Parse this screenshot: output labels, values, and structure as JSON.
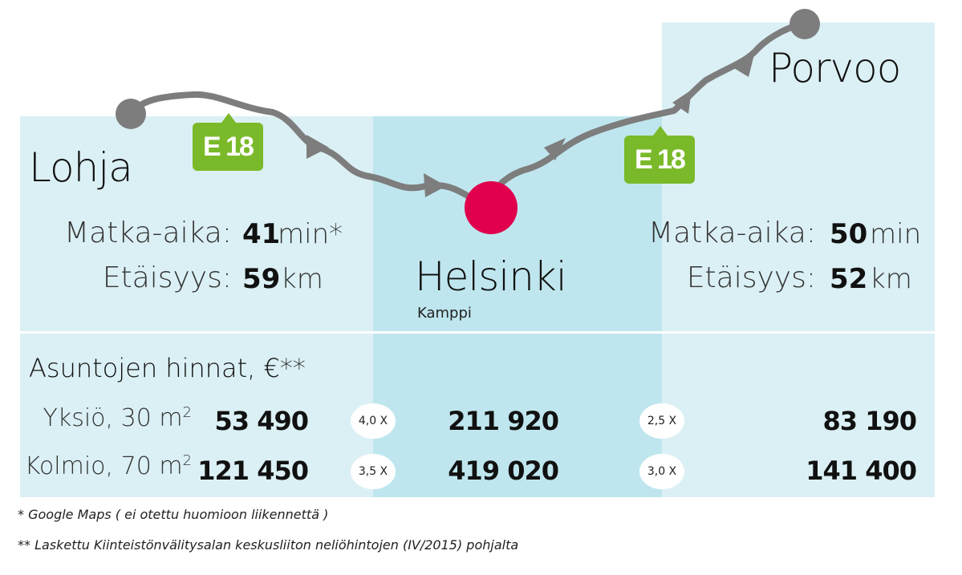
{
  "route": {
    "road_label": "E 18"
  },
  "cities": {
    "left": {
      "name": "Lohja"
    },
    "center": {
      "name": "Helsinki",
      "sub": "Kamppi"
    },
    "right": {
      "name": "Porvoo"
    }
  },
  "stats": {
    "travel_label": "Matka-aika:",
    "distance_label": "Etäisyys:",
    "left": {
      "travel_value": "41",
      "travel_unit": "min*",
      "distance_value": "59",
      "distance_unit": "km"
    },
    "right": {
      "travel_value": "50",
      "travel_unit": "min",
      "distance_value": "52",
      "distance_unit": "km"
    }
  },
  "prices": {
    "title": "Asuntojen hinnat, €**",
    "rows": [
      {
        "label": "Yksiö, 30 m",
        "sup": "2",
        "left": "53 490",
        "ratio_left": "4,0 X",
        "center": "211 920",
        "ratio_right": "2,5 X",
        "right": "83 190"
      },
      {
        "label": "Kolmio, 70 m",
        "sup": "2",
        "left": "121 450",
        "ratio_left": "3,5 X",
        "center": "419 020",
        "ratio_right": "3,0 X",
        "right": "141 400"
      }
    ]
  },
  "footnotes": {
    "note1": "* Google Maps ( ei otettu huomioon liikennettä )",
    "note2": "** Laskettu Kiinteistönvälitysalan keskusliiton neliöhintojen (IV/2015) pohjalta"
  },
  "colors": {
    "route": "#7d7d7d",
    "road_sign": "#7ab929",
    "destination": "#e0004d",
    "panel_light": "#dbf0f4",
    "panel_mid": "#bfe6ee"
  }
}
